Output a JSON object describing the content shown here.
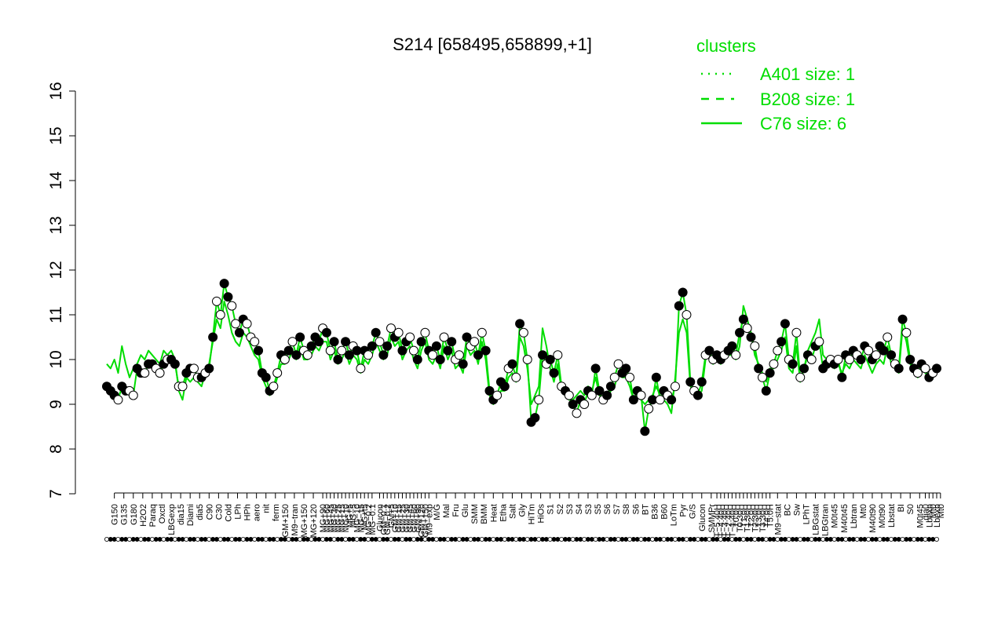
{
  "chart_data": {
    "type": "line",
    "title": "S214 [658495,658899,+1]",
    "xlabel": "",
    "ylabel": "",
    "ylim": [
      7,
      16
    ],
    "yticks": [
      7,
      8,
      9,
      10,
      11,
      12,
      13,
      14,
      15,
      16
    ],
    "grid": false,
    "legend_position": "top-right",
    "legend": {
      "title": "clusters",
      "color": "#00dd00",
      "entries": [
        {
          "label": "A401 size: 1",
          "style": "dotted"
        },
        {
          "label": "B208 size: 1",
          "style": "dashed"
        },
        {
          "label": "C76 size: 6",
          "style": "solid"
        }
      ]
    },
    "colors": {
      "line": "#00dd00",
      "point": "#000000",
      "open_point_fill": "#ffffff"
    },
    "tick_labels": [
      {
        "x": 2,
        "label": "G150"
      },
      {
        "x": 4.5,
        "label": "G135"
      },
      {
        "x": 7,
        "label": "G180"
      },
      {
        "x": 9.5,
        "label": "H2O2"
      },
      {
        "x": 12,
        "label": "Paraq"
      },
      {
        "x": 14.5,
        "label": "Oxctl"
      },
      {
        "x": 17,
        "label": "LBGexp"
      },
      {
        "x": 19.5,
        "label": "dia15"
      },
      {
        "x": 22,
        "label": "Diami"
      },
      {
        "x": 24.5,
        "label": "dia5"
      },
      {
        "x": 27,
        "label": "C90"
      },
      {
        "x": 29.5,
        "label": "C30"
      },
      {
        "x": 32,
        "label": "Cold"
      },
      {
        "x": 34.5,
        "label": "LPh"
      },
      {
        "x": 37,
        "label": "HPh"
      },
      {
        "x": 39.5,
        "label": "aero"
      },
      {
        "x": 42,
        "label": "nit"
      },
      {
        "x": 44.5,
        "label": "ferm"
      },
      {
        "x": 47,
        "label": "GM+150"
      },
      {
        "x": 49.5,
        "label": "M9−tran"
      },
      {
        "x": 52,
        "label": "MG+150"
      },
      {
        "x": 54.5,
        "label": "MG+120"
      },
      {
        "x": 57,
        "label": "MG+90"
      },
      {
        "x": 58,
        "label": "MG+60"
      },
      {
        "x": 59,
        "label": "MG+45"
      },
      {
        "x": 60,
        "label": "MG+30"
      },
      {
        "x": 61,
        "label": "MG+25"
      },
      {
        "x": 62,
        "label": "MG+15"
      },
      {
        "x": 63,
        "label": "MG+10"
      },
      {
        "x": 64,
        "label": "MG+5"
      },
      {
        "x": 65,
        "label": "MG−5"
      },
      {
        "x": 66,
        "label": "MG−10"
      },
      {
        "x": 67,
        "label": "MG−15"
      },
      {
        "x": 68,
        "label": "MG+t5"
      },
      {
        "x": 69,
        "label": "MG−0.2"
      },
      {
        "x": 70,
        "label": "MG−0.1"
      },
      {
        "x": 72,
        "label": "Glucon"
      },
      {
        "x": 73,
        "label": "GM−0.1"
      },
      {
        "x": 74,
        "label": "GM−0.2"
      },
      {
        "x": 75,
        "label": "GM+5"
      },
      {
        "x": 76,
        "label": "GM+10"
      },
      {
        "x": 77,
        "label": "GM+15"
      },
      {
        "x": 78,
        "label": "GM+25"
      },
      {
        "x": 79,
        "label": "GM+30"
      },
      {
        "x": 80,
        "label": "GM+45"
      },
      {
        "x": 81,
        "label": "GM+60"
      },
      {
        "x": 82,
        "label": "GM+90"
      },
      {
        "x": 83,
        "label": "GM+120"
      },
      {
        "x": 84,
        "label": "GM+150"
      },
      {
        "x": 85,
        "label": "M9−exp"
      },
      {
        "x": 87,
        "label": "M/G"
      },
      {
        "x": 89.5,
        "label": "Mal"
      },
      {
        "x": 92,
        "label": "Fru"
      },
      {
        "x": 94.5,
        "label": "Glu"
      },
      {
        "x": 97,
        "label": "SMM"
      },
      {
        "x": 99.5,
        "label": "BMM"
      },
      {
        "x": 102,
        "label": "Heat"
      },
      {
        "x": 104.5,
        "label": "Etha"
      },
      {
        "x": 107,
        "label": "Salt"
      },
      {
        "x": 109.5,
        "label": "Gly"
      },
      {
        "x": 112,
        "label": "HiTm"
      },
      {
        "x": 114.5,
        "label": "HiOs"
      },
      {
        "x": 117,
        "label": "S1"
      },
      {
        "x": 119.5,
        "label": "S2"
      },
      {
        "x": 122,
        "label": "S3"
      },
      {
        "x": 124.5,
        "label": "S4"
      },
      {
        "x": 127,
        "label": "S3"
      },
      {
        "x": 129.5,
        "label": "S5"
      },
      {
        "x": 132,
        "label": "S6"
      },
      {
        "x": 134.5,
        "label": "S7"
      },
      {
        "x": 137,
        "label": "S8"
      },
      {
        "x": 139.5,
        "label": "S6"
      },
      {
        "x": 142,
        "label": "BT"
      },
      {
        "x": 144.5,
        "label": "B36"
      },
      {
        "x": 147,
        "label": "B60"
      },
      {
        "x": 149.5,
        "label": "LoTm"
      },
      {
        "x": 152,
        "label": "Pyr"
      },
      {
        "x": 154.5,
        "label": "G/S"
      },
      {
        "x": 157,
        "label": "Glucon"
      },
      {
        "x": 159.5,
        "label": "SMMPr"
      },
      {
        "x": 161,
        "label": "T−5.40H"
      },
      {
        "x": 162,
        "label": "T−4.40H"
      },
      {
        "x": 163,
        "label": "T−3.40H"
      },
      {
        "x": 164,
        "label": "T−2.40H"
      },
      {
        "x": 165,
        "label": "T−1.40H"
      },
      {
        "x": 166,
        "label": "T0.0H"
      },
      {
        "x": 167,
        "label": "T0.30H"
      },
      {
        "x": 168,
        "label": "T1.0H"
      },
      {
        "x": 169,
        "label": "T1.30H"
      },
      {
        "x": 170,
        "label": "T2.0H"
      },
      {
        "x": 171,
        "label": "T2.30H"
      },
      {
        "x": 172,
        "label": "T3.0H"
      },
      {
        "x": 173,
        "label": "T3.30H"
      },
      {
        "x": 174,
        "label": "T4.0H"
      },
      {
        "x": 175,
        "label": "T5.0H"
      },
      {
        "x": 177,
        "label": "M9−stat"
      },
      {
        "x": 179.5,
        "label": "BC"
      },
      {
        "x": 182,
        "label": "Sw"
      },
      {
        "x": 184.5,
        "label": "LPhT"
      },
      {
        "x": 187,
        "label": "LBGstat"
      },
      {
        "x": 189.5,
        "label": "LBGtran"
      },
      {
        "x": 192,
        "label": "M0t45"
      },
      {
        "x": 194.5,
        "label": "M40t45"
      },
      {
        "x": 197,
        "label": "Lbtran"
      },
      {
        "x": 199.5,
        "label": "Mt0"
      },
      {
        "x": 202,
        "label": "M40t90"
      },
      {
        "x": 204.5,
        "label": "M0t90"
      },
      {
        "x": 207,
        "label": "Lbstat"
      },
      {
        "x": 209.5,
        "label": "BI"
      },
      {
        "x": 212,
        "label": "S0"
      },
      {
        "x": 214.5,
        "label": "M0t45"
      },
      {
        "x": 216,
        "label": "dia0"
      },
      {
        "x": 217,
        "label": "Lbexp"
      },
      {
        "x": 218,
        "label": "Mt0"
      },
      {
        "x": 219,
        "label": "Lbexp"
      },
      {
        "x": 220,
        "label": "Mt0"
      }
    ],
    "series": [
      {
        "style": "solid",
        "values": [
          9.4,
          9.3,
          9.2,
          9.1,
          9.4,
          9.3,
          9.3,
          9.2,
          9.8,
          9.7,
          9.7,
          9.9,
          9.9,
          9.8,
          9.7,
          9.9,
          10.0,
          10.0,
          9.9,
          9.4,
          9.4,
          9.7,
          9.8,
          9.8,
          9.6,
          9.6,
          9.7,
          9.8,
          10.5,
          11.3,
          11.0,
          11.7,
          11.4,
          11.2,
          10.8,
          10.6,
          10.9,
          10.8,
          10.5,
          10.4,
          10.2,
          9.7,
          9.6,
          9.3,
          9.4,
          9.7,
          10.1,
          10.0,
          10.2,
          10.4,
          10.1,
          10.5,
          10.2,
          10.1,
          10.3,
          10.5,
          10.4,
          10.7,
          10.6,
          10.2,
          10.4,
          10.0,
          10.2,
          10.4,
          10.1,
          10.3,
          10.2,
          9.8,
          10.2,
          10.1,
          10.3,
          10.6,
          10.4,
          10.1,
          10.3,
          10.7,
          10.5,
          10.6,
          10.2,
          10.4,
          10.5,
          10.2,
          10.0,
          10.4,
          10.6,
          10.2,
          10.1,
          10.3,
          10.0,
          10.5,
          10.2,
          10.4,
          10.0,
          10.1,
          9.9,
          10.5,
          10.3,
          10.4,
          10.1,
          10.6,
          10.2,
          9.3,
          9.1,
          9.2,
          9.5,
          9.4,
          9.8,
          9.9,
          9.6,
          10.8,
          10.6,
          10.0,
          8.6,
          8.7,
          9.1,
          10.1,
          9.9,
          10.0,
          9.7,
          10.1,
          9.4,
          9.3,
          9.2,
          9.0,
          8.8,
          9.1,
          9.0,
          9.3,
          9.2,
          9.8,
          9.3,
          9.1,
          9.2,
          9.4,
          9.6,
          9.9,
          9.7,
          9.8,
          9.6,
          9.1,
          9.3,
          9.2,
          8.4,
          8.9,
          9.1,
          9.6,
          9.1,
          9.3,
          9.2,
          9.1,
          9.4,
          11.2,
          11.5,
          11.0,
          9.5,
          9.3,
          9.2,
          9.5,
          10.1,
          10.2,
          10.0,
          10.1,
          10.0,
          10.1,
          10.2,
          10.3,
          10.1,
          10.6,
          10.9,
          10.7,
          10.5,
          10.3,
          9.8,
          9.6,
          9.3,
          9.7,
          9.9,
          10.2,
          10.4,
          10.8,
          10.0,
          9.9,
          10.6,
          9.6,
          9.8,
          10.1,
          10.0,
          10.3,
          10.4,
          9.8,
          9.9,
          10.0,
          9.9,
          10.0,
          9.6,
          10.1,
          10.0,
          10.2,
          10.1,
          10.0,
          10.3,
          10.2,
          10.0,
          10.1,
          10.3,
          10.2,
          10.5,
          10.1,
          9.9,
          9.8,
          10.9,
          10.6,
          10.0,
          9.8,
          9.7,
          9.9,
          9.8,
          9.6,
          9.7,
          9.8
        ],
        "filled": [
          1,
          1,
          1,
          0,
          1,
          1,
          0,
          0,
          1,
          1,
          0,
          1,
          1,
          0,
          0,
          1,
          0,
          1,
          1,
          0,
          0,
          1,
          1,
          0,
          0,
          1,
          0,
          1,
          1,
          0,
          0,
          1,
          1,
          0,
          0,
          1,
          1,
          0,
          0,
          0,
          1,
          1,
          1,
          1,
          0,
          0,
          1,
          0,
          1,
          0,
          1,
          1,
          0,
          0,
          1,
          1,
          1,
          0,
          1,
          0,
          1,
          1,
          0,
          1,
          1,
          0,
          1,
          0,
          1,
          0,
          1,
          1,
          0,
          1,
          1,
          0,
          1,
          0,
          1,
          1,
          0,
          0,
          1,
          1,
          0,
          1,
          0,
          1,
          1,
          0,
          1,
          1,
          0,
          0,
          1,
          1,
          0,
          0,
          1,
          0,
          1,
          1,
          1,
          0,
          1,
          1,
          0,
          1,
          0,
          1,
          0,
          0,
          1,
          1,
          0,
          1,
          0,
          1,
          1,
          0,
          0,
          1,
          0,
          1,
          0,
          1,
          0,
          1,
          0,
          1,
          1,
          0,
          1,
          1,
          0,
          0,
          1,
          1,
          0,
          1,
          1,
          0,
          1,
          0,
          1,
          1,
          0,
          1,
          0,
          1,
          0,
          1,
          1,
          0,
          1,
          0,
          1,
          1,
          0,
          1,
          0,
          1,
          1,
          0,
          1,
          1,
          0,
          1,
          1,
          0,
          1,
          0,
          1,
          0,
          1,
          1,
          0,
          0,
          1,
          1,
          0,
          1,
          0,
          0,
          1,
          1,
          0,
          1,
          0,
          1,
          1,
          0,
          1,
          0,
          1,
          1,
          0,
          1,
          0,
          1,
          1,
          0,
          1,
          0,
          1,
          1,
          0,
          1,
          0,
          1,
          1,
          0,
          1,
          1,
          0,
          1,
          0,
          1,
          0,
          1,
          1,
          0,
          0
        ]
      },
      {
        "style": "solid",
        "values": [
          9.9,
          9.8,
          10.0,
          9.7,
          10.3,
          9.9,
          9.6,
          9.8,
          9.9,
          10.1,
          10.0,
          10.2,
          10.1,
          10.0,
          9.9,
          10.2,
          10.1,
          10.2,
          10.0,
          9.3,
          9.1,
          9.6,
          9.5,
          9.6,
          9.5,
          9.4,
          9.7,
          9.9,
          10.4,
          10.9,
          10.7,
          11.3,
          11.0,
          10.6,
          10.4,
          10.3,
          10.6,
          10.5,
          10.3,
          10.1,
          10.0,
          9.6,
          9.4,
          9.2,
          9.3,
          9.6,
          9.9,
          9.9,
          10.0,
          10.2,
          10.0,
          10.3,
          10.0,
          10.0,
          10.1,
          10.3,
          10.2,
          10.4,
          10.4,
          10.0,
          10.2,
          9.9,
          10.0,
          10.2,
          9.9,
          10.1,
          10.0,
          9.7,
          10.0,
          9.9,
          10.1,
          10.4,
          10.2,
          10.0,
          10.1,
          10.5,
          10.3,
          10.4,
          10.0,
          10.2,
          10.3,
          10.0,
          9.8,
          10.2,
          10.4,
          10.0,
          9.9,
          10.1,
          9.8,
          10.3,
          10.0,
          10.2,
          9.8,
          9.9,
          9.7,
          10.3,
          10.1,
          10.2,
          9.9,
          10.4,
          10.0,
          9.2,
          9.0,
          9.1,
          9.3,
          9.3,
          9.6,
          9.7,
          9.5,
          10.5,
          10.3,
          9.8,
          9.0,
          9.2,
          9.4,
          10.7,
          10.3,
          9.8,
          9.5,
          9.9,
          9.3,
          9.2,
          9.1,
          9.1,
          9.2,
          9.3,
          9.2,
          9.4,
          9.3,
          9.6,
          9.2,
          9.1,
          9.1,
          9.3,
          9.4,
          9.7,
          9.6,
          9.6,
          9.4,
          9.1,
          9.2,
          9.1,
          9.0,
          9.1,
          9.2,
          9.4,
          9.2,
          9.1,
          9.0,
          8.8,
          9.6,
          10.6,
          10.9,
          10.6,
          9.4,
          9.3,
          9.2,
          9.3,
          10.0,
          10.1,
          9.9,
          10.0,
          9.9,
          10.0,
          10.1,
          10.1,
          10.0,
          10.3,
          11.2,
          10.9,
          10.6,
          10.1,
          9.9,
          9.7,
          9.5,
          9.8,
          9.8,
          10.0,
          10.2,
          10.5,
          9.8,
          9.7,
          10.3,
          9.5,
          9.8,
          10.2,
          10.4,
          10.6,
          10.9,
          10.1,
          10.0,
          9.9,
          9.8,
          9.9,
          9.7,
          9.9,
          9.8,
          10.0,
          9.9,
          9.8,
          10.1,
          9.9,
          9.7,
          9.9,
          10.0,
          9.9,
          10.3,
          9.9,
          9.8,
          9.7,
          10.7,
          10.4,
          9.9,
          9.8,
          9.6,
          9.8,
          9.7,
          9.6,
          9.6,
          9.7
        ]
      }
    ]
  }
}
